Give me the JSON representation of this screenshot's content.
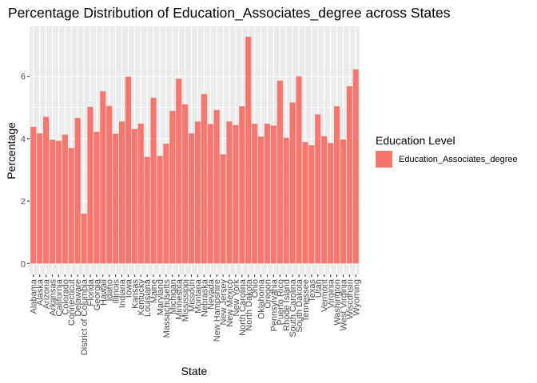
{
  "chart_data": {
    "type": "bar",
    "title": "Percentage Distribution of Education_Associates_degree across States",
    "xlabel": "State",
    "ylabel": "Percentage",
    "ylim": [
      -0.35,
      7.6
    ],
    "yticks": [
      0,
      2,
      4,
      6
    ],
    "grid": true,
    "legend_position": "right",
    "legend_title": "Education Level",
    "bar_color": "#F8766D",
    "panel_color": "#EBEBEB",
    "grid_color": "#FFFFFF",
    "categories": [
      "Alabama",
      "Alaska",
      "Arizona",
      "Arkansas",
      "California",
      "Colorado",
      "Connecticut",
      "Delaware",
      "District of Columbia",
      "Florida",
      "Georgia",
      "Hawaii",
      "Idaho",
      "Illinois",
      "Indiana",
      "Iowa",
      "Kansas",
      "Kentucky",
      "Louisiana",
      "Maine",
      "Maryland",
      "Massachusetts",
      "Michigan",
      "Minnesota",
      "Mississippi",
      "Missouri",
      "Montana",
      "Nebraska",
      "Nevada",
      "New Hampshire",
      "New Jersey",
      "New Mexico",
      "New York",
      "North Carolina",
      "North Dakota",
      "Ohio",
      "Oklahoma",
      "Oregon",
      "Pennsylvania",
      "Puerto Rico",
      "Rhode Island",
      "South Carolina",
      "South Dakota",
      "Tennessee",
      "Texas",
      "Utah",
      "Vermont",
      "Virginia",
      "Washington",
      "West Virginia",
      "Wisconsin",
      "Wyoming"
    ],
    "series": [
      {
        "name": "Education_Associates_degree",
        "values": [
          4.38,
          4.17,
          4.7,
          3.97,
          3.93,
          4.13,
          3.7,
          4.66,
          1.6,
          5.02,
          4.22,
          5.52,
          5.05,
          4.16,
          4.55,
          5.99,
          4.31,
          4.48,
          3.42,
          5.31,
          3.45,
          3.84,
          4.89,
          5.92,
          5.1,
          4.17,
          4.55,
          5.43,
          4.47,
          4.92,
          3.5,
          4.55,
          4.44,
          5.04,
          7.27,
          4.48,
          4.07,
          4.48,
          4.42,
          5.86,
          4.03,
          5.16,
          6.0,
          3.89,
          3.79,
          4.78,
          4.08,
          3.86,
          5.04,
          3.98,
          5.68,
          6.22
        ]
      }
    ]
  }
}
